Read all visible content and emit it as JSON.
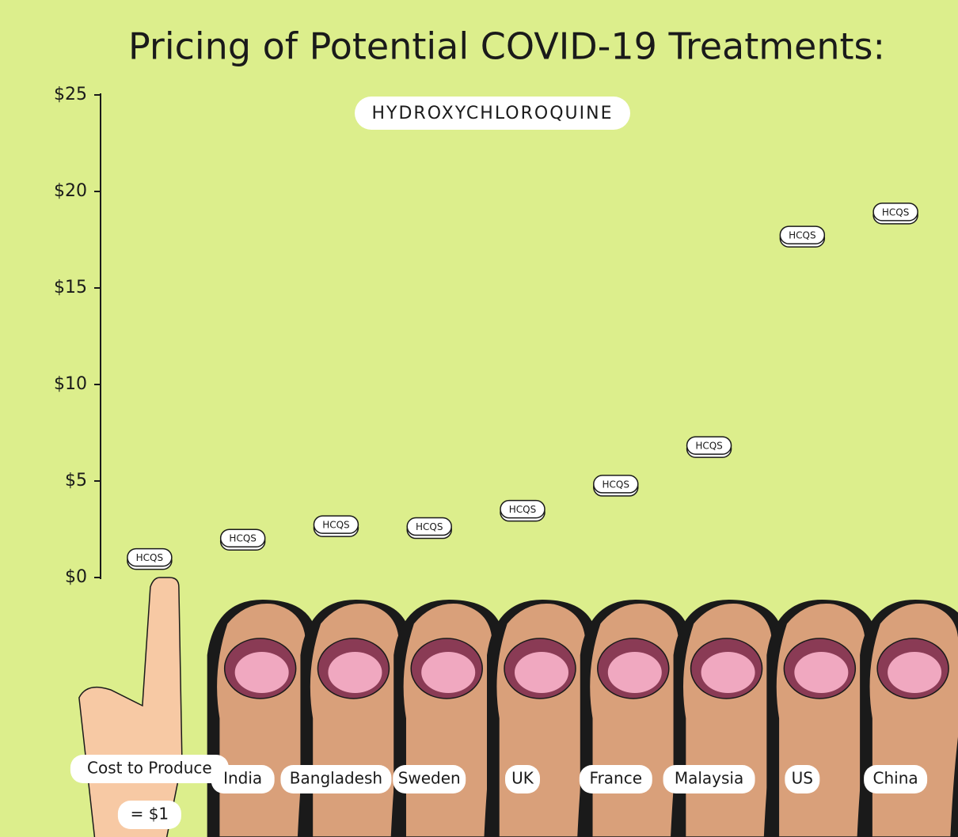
{
  "chart_data": {
    "type": "pill-dot",
    "title": "Pricing of Potential COVID-19 Treatments:",
    "subtitle": "HYDROXYCHLOROQUINE",
    "pill_label": "HCQS",
    "cost_note": "= $1",
    "categories": [
      "Cost to Produce",
      "India",
      "Bangladesh",
      "Sweden",
      "UK",
      "France",
      "Malaysia",
      "US",
      "China"
    ],
    "values": [
      1,
      2,
      2.7,
      2.6,
      3.5,
      4.8,
      6.8,
      17.7,
      18.9
    ],
    "ylim": [
      0,
      25
    ],
    "yticks": [
      {
        "value": 0,
        "label": "$0"
      },
      {
        "value": 5,
        "label": "$5"
      },
      {
        "value": 10,
        "label": "$10"
      },
      {
        "value": 15,
        "label": "$15"
      },
      {
        "value": 20,
        "label": "$20"
      },
      {
        "value": 25,
        "label": "$25"
      }
    ]
  }
}
